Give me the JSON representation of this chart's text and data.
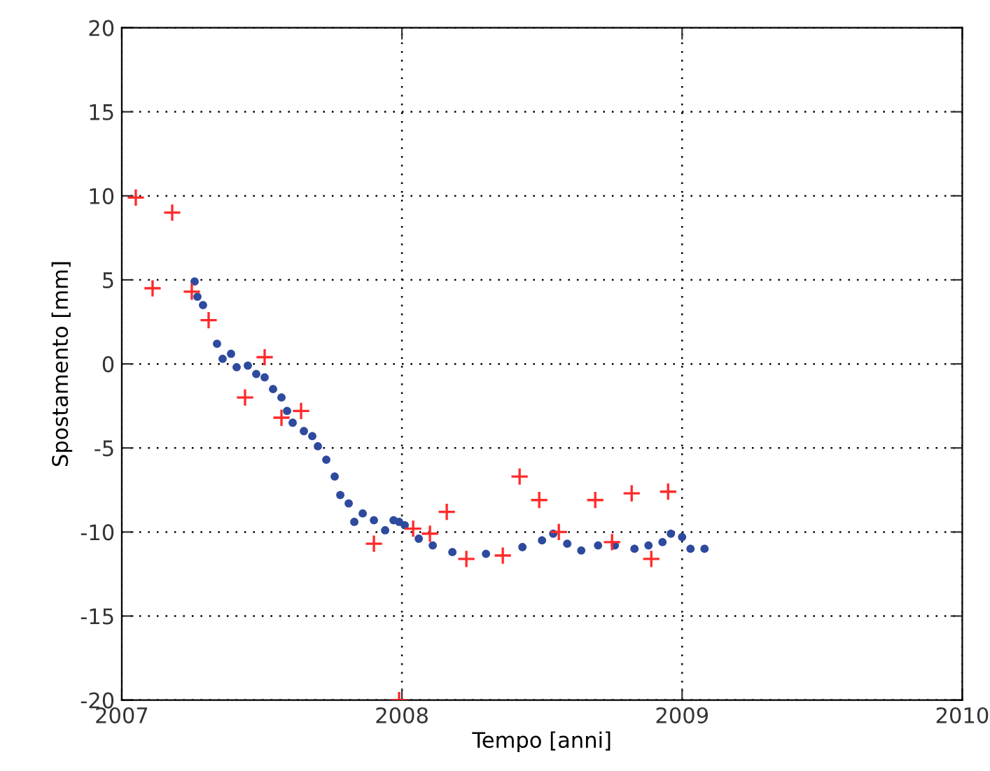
{
  "chart_data": {
    "type": "scatter",
    "xlabel": "Tempo [anni]",
    "ylabel": "Spostamento [mm]",
    "xlim": [
      2007,
      2010
    ],
    "xticks": [
      2007,
      2008,
      2009,
      2010
    ],
    "ylim": [
      -20,
      20
    ],
    "yticks": [
      -20,
      -15,
      -10,
      -5,
      0,
      5,
      10,
      15,
      20
    ],
    "grid": true,
    "series": [
      {
        "color": "#2e4a9e",
        "marker": "circle",
        "x": [
          2007.26,
          2007.27,
          2007.29,
          2007.34,
          2007.36,
          2007.39,
          2007.41,
          2007.45,
          2007.48,
          2007.51,
          2007.54,
          2007.57,
          2007.59,
          2007.61,
          2007.65,
          2007.68,
          2007.7,
          2007.73,
          2007.76,
          2007.78,
          2007.81,
          2007.83,
          2007.86,
          2007.9,
          2007.94,
          2007.97,
          2007.99,
          2008.01,
          2008.06,
          2008.11,
          2008.18,
          2008.3,
          2008.43,
          2008.5,
          2008.54,
          2008.59,
          2008.64,
          2008.7,
          2008.76,
          2008.83,
          2008.88,
          2008.93,
          2008.96,
          2009.0,
          2009.03,
          2009.08
        ],
        "values": [
          4.9,
          4.0,
          3.5,
          1.2,
          0.3,
          0.6,
          -0.2,
          -0.1,
          -0.6,
          -0.8,
          -1.5,
          -2.0,
          -2.8,
          -3.5,
          -4.0,
          -4.3,
          -4.9,
          -5.7,
          -6.7,
          -7.8,
          -8.3,
          -9.4,
          -8.9,
          -9.3,
          -9.9,
          -9.3,
          -9.4,
          -9.6,
          -10.4,
          -10.8,
          -11.2,
          -11.3,
          -10.9,
          -10.5,
          -10.1,
          -10.7,
          -11.1,
          -10.8,
          -10.8,
          -11.0,
          -10.8,
          -10.6,
          -10.1,
          -10.3,
          -11.0,
          -11.0
        ]
      },
      {
        "color": "#ff2a2a",
        "marker": "cross",
        "x": [
          2007.05,
          2007.11,
          2007.18,
          2007.25,
          2007.31,
          2007.44,
          2007.51,
          2007.57,
          2007.64,
          2007.9,
          2007.99,
          2008.04,
          2008.1,
          2008.16,
          2008.23,
          2008.36,
          2008.42,
          2008.49,
          2008.56,
          2008.69,
          2008.75,
          2008.82,
          2008.89,
          2008.95
        ],
        "values": [
          9.9,
          4.5,
          9.0,
          4.3,
          2.6,
          -2.0,
          0.4,
          -3.2,
          -2.8,
          -10.7,
          -20.0,
          -9.8,
          -10.1,
          -8.8,
          -11.6,
          -11.4,
          -6.7,
          -8.1,
          -10.0,
          -8.1,
          -10.6,
          -7.7,
          -11.6,
          -7.6
        ]
      }
    ]
  }
}
